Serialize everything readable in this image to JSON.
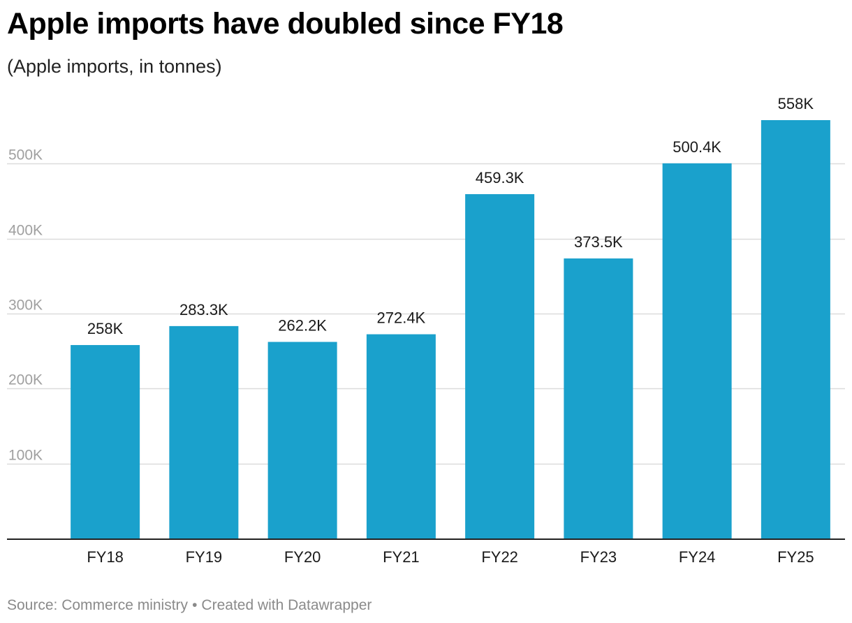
{
  "title": "Apple imports have doubled since FY18",
  "subtitle": "(Apple imports, in tonnes)",
  "footer": {
    "source": "Source: Commerce ministry",
    "separator": "•",
    "credit": "Created with Datawrapper"
  },
  "colors": {
    "bar": "#1aa1cc",
    "grid": "#dcdcdc",
    "axis": "#222222"
  },
  "chart_data": {
    "type": "bar",
    "title": "Apple imports have doubled since FY18",
    "subtitle": "(Apple imports, in tonnes)",
    "xlabel": "",
    "ylabel": "",
    "categories": [
      "FY18",
      "FY19",
      "FY20",
      "FY21",
      "FY22",
      "FY23",
      "FY24",
      "FY25"
    ],
    "values": [
      258000,
      283300,
      262200,
      272400,
      459300,
      373500,
      500400,
      558000
    ],
    "data_labels": [
      "258K",
      "283.3K",
      "262.2K",
      "272.4K",
      "459.3K",
      "373.5K",
      "500.4K",
      "558K"
    ],
    "yticks": [
      100000,
      200000,
      300000,
      400000,
      500000
    ],
    "ytick_labels": [
      "100K",
      "200K",
      "300K",
      "400K",
      "500K"
    ],
    "ylim": [
      0,
      558000
    ],
    "grid": true,
    "legend": "none"
  }
}
